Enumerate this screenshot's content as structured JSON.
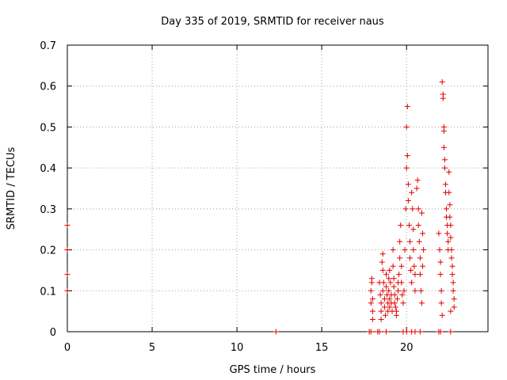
{
  "chart_data": {
    "type": "scatter",
    "title": "Day 335 of 2019, SRMTID for receiver naus",
    "xlabel": "GPS time / hours",
    "ylabel": "SRMTID / TECUs",
    "xlim": [
      0,
      24.8
    ],
    "ylim": [
      0,
      0.7
    ],
    "xticks": [
      0,
      5,
      10,
      15,
      20
    ],
    "yticks": [
      0,
      0.1,
      0.2,
      0.3,
      0.4,
      0.5,
      0.6,
      0.7
    ],
    "ytick_labels": [
      "0",
      "0.1",
      "0.2",
      "0.3",
      "0.4",
      "0.5",
      "0.6",
      "0.7"
    ],
    "grid": true,
    "marker": "+",
    "series": [
      {
        "color": "#e00000",
        "points": [
          [
            0.0,
            0.26
          ],
          [
            0.0,
            0.2
          ],
          [
            0.0,
            0.14
          ],
          [
            0.0,
            0.1
          ],
          [
            0.0,
            0.2
          ],
          [
            12.3,
            0.0
          ],
          [
            17.8,
            0.0
          ],
          [
            17.9,
            0.0
          ],
          [
            17.95,
            0.13
          ],
          [
            17.95,
            0.12
          ],
          [
            17.9,
            0.1
          ],
          [
            18.0,
            0.08
          ],
          [
            17.9,
            0.07
          ],
          [
            18.0,
            0.05
          ],
          [
            18.0,
            0.03
          ],
          [
            18.3,
            0.0
          ],
          [
            18.4,
            0.0
          ],
          [
            18.4,
            0.12
          ],
          [
            18.45,
            0.09
          ],
          [
            18.5,
            0.07
          ],
          [
            18.5,
            0.05
          ],
          [
            18.5,
            0.03
          ],
          [
            18.55,
            0.17
          ],
          [
            18.6,
            0.19
          ],
          [
            18.6,
            0.15
          ],
          [
            18.65,
            0.12
          ],
          [
            18.6,
            0.1
          ],
          [
            18.7,
            0.08
          ],
          [
            18.7,
            0.06
          ],
          [
            18.75,
            0.04
          ],
          [
            18.8,
            0.0
          ],
          [
            18.8,
            0.14
          ],
          [
            18.8,
            0.11
          ],
          [
            18.85,
            0.09
          ],
          [
            18.9,
            0.07
          ],
          [
            18.9,
            0.05
          ],
          [
            18.95,
            0.13
          ],
          [
            18.95,
            0.1
          ],
          [
            19.0,
            0.08
          ],
          [
            19.0,
            0.06
          ],
          [
            19.0,
            0.15
          ],
          [
            19.05,
            0.12
          ],
          [
            19.1,
            0.09
          ],
          [
            19.1,
            0.07
          ],
          [
            19.15,
            0.05
          ],
          [
            19.2,
            0.2
          ],
          [
            19.2,
            0.16
          ],
          [
            19.25,
            0.13
          ],
          [
            19.25,
            0.11
          ],
          [
            19.3,
            0.09
          ],
          [
            19.3,
            0.07
          ],
          [
            19.35,
            0.06
          ],
          [
            19.4,
            0.05
          ],
          [
            19.4,
            0.04
          ],
          [
            19.45,
            0.08
          ],
          [
            19.5,
            0.1
          ],
          [
            19.5,
            0.12
          ],
          [
            19.55,
            0.14
          ],
          [
            19.6,
            0.18
          ],
          [
            19.6,
            0.22
          ],
          [
            19.65,
            0.26
          ],
          [
            19.7,
            0.16
          ],
          [
            19.7,
            0.12
          ],
          [
            19.75,
            0.09
          ],
          [
            19.8,
            0.07
          ],
          [
            19.85,
            0.1
          ],
          [
            19.9,
            0.2
          ],
          [
            19.95,
            0.3
          ],
          [
            20.0,
            0.4
          ],
          [
            20.0,
            0.5
          ],
          [
            20.05,
            0.55
          ],
          [
            20.05,
            0.43
          ],
          [
            20.1,
            0.36
          ],
          [
            20.1,
            0.32
          ],
          [
            20.15,
            0.26
          ],
          [
            20.2,
            0.22
          ],
          [
            20.2,
            0.18
          ],
          [
            20.25,
            0.15
          ],
          [
            20.3,
            0.12
          ],
          [
            20.3,
            0.34
          ],
          [
            20.35,
            0.3
          ],
          [
            20.4,
            0.25
          ],
          [
            20.4,
            0.2
          ],
          [
            20.45,
            0.16
          ],
          [
            20.5,
            0.14
          ],
          [
            20.5,
            0.1
          ],
          [
            19.8,
            0.0
          ],
          [
            20.0,
            0.0
          ],
          [
            20.3,
            0.0
          ],
          [
            20.5,
            0.0
          ],
          [
            20.6,
            0.35
          ],
          [
            20.65,
            0.37
          ],
          [
            20.7,
            0.3
          ],
          [
            20.7,
            0.26
          ],
          [
            20.75,
            0.22
          ],
          [
            20.8,
            0.18
          ],
          [
            20.8,
            0.14
          ],
          [
            20.85,
            0.1
          ],
          [
            20.9,
            0.07
          ],
          [
            20.9,
            0.29
          ],
          [
            20.95,
            0.24
          ],
          [
            21.0,
            0.2
          ],
          [
            20.95,
            0.16
          ],
          [
            20.8,
            0.0
          ],
          [
            21.9,
            0.0
          ],
          [
            22.0,
            0.0
          ],
          [
            21.9,
            0.24
          ],
          [
            21.95,
            0.2
          ],
          [
            22.0,
            0.17
          ],
          [
            22.0,
            0.14
          ],
          [
            22.05,
            0.1
          ],
          [
            22.05,
            0.07
          ],
          [
            22.1,
            0.04
          ],
          [
            22.1,
            0.61
          ],
          [
            22.15,
            0.58
          ],
          [
            22.15,
            0.57
          ],
          [
            22.2,
            0.5
          ],
          [
            22.2,
            0.49
          ],
          [
            22.2,
            0.45
          ],
          [
            22.25,
            0.42
          ],
          [
            22.25,
            0.4
          ],
          [
            22.3,
            0.36
          ],
          [
            22.3,
            0.34
          ],
          [
            22.35,
            0.3
          ],
          [
            22.35,
            0.28
          ],
          [
            22.4,
            0.26
          ],
          [
            22.4,
            0.24
          ],
          [
            22.45,
            0.22
          ],
          [
            22.45,
            0.2
          ],
          [
            22.5,
            0.39
          ],
          [
            22.5,
            0.34
          ],
          [
            22.55,
            0.31
          ],
          [
            22.55,
            0.28
          ],
          [
            22.6,
            0.26
          ],
          [
            22.6,
            0.23
          ],
          [
            22.65,
            0.2
          ],
          [
            22.65,
            0.18
          ],
          [
            22.7,
            0.16
          ],
          [
            22.7,
            0.14
          ],
          [
            22.75,
            0.12
          ],
          [
            22.75,
            0.1
          ],
          [
            22.8,
            0.08
          ],
          [
            22.8,
            0.06
          ],
          [
            22.6,
            0.05
          ],
          [
            22.6,
            0.0
          ]
        ]
      }
    ]
  }
}
